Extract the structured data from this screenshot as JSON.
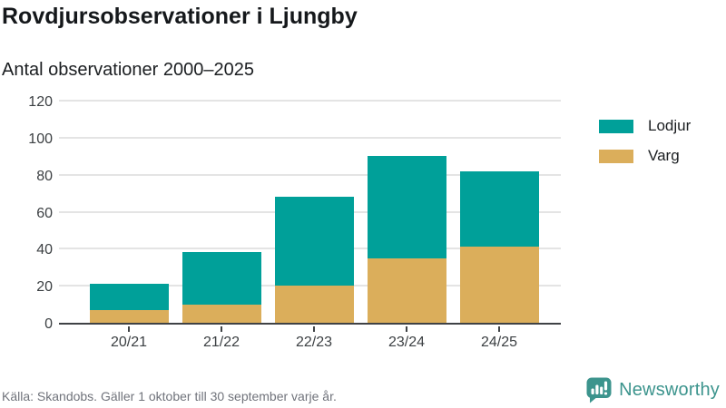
{
  "header": {
    "title": "Rovdjursobservationer i Ljungby",
    "subtitle": "Antal observationer 2000–2025"
  },
  "chart_data": {
    "type": "bar",
    "stacked": true,
    "title": "Rovdjursobservationer i Ljungby",
    "subtitle": "Antal observationer 2000–2025",
    "categories": [
      "20/21",
      "21/22",
      "22/23",
      "23/24",
      "24/25"
    ],
    "series": [
      {
        "name": "Lodjur",
        "color": "#00a099",
        "values": [
          14,
          28,
          48,
          55,
          41
        ]
      },
      {
        "name": "Varg",
        "color": "#dbae5b",
        "values": [
          7,
          10,
          20,
          35,
          41
        ]
      }
    ],
    "stack_totals": [
      21,
      38,
      68,
      90,
      82
    ],
    "xlabel": "",
    "ylabel": "",
    "ylim": [
      0,
      120
    ],
    "yticks": [
      0,
      20,
      40,
      60,
      80,
      100,
      120
    ],
    "grid": true,
    "legend_position": "right",
    "colors": {
      "grid": "#e4e4e4",
      "axis": "#3f4245",
      "tick_label": "#3c4043"
    }
  },
  "legend": {
    "items": [
      {
        "label": "Lodjur",
        "color": "#00a099"
      },
      {
        "label": "Varg",
        "color": "#dbae5b"
      }
    ]
  },
  "footer": {
    "source": "Källa: Skandobs. Gäller 1 oktober till 30 september varje år.",
    "brand": "Newsworthy",
    "brand_color": "#3c948d"
  }
}
